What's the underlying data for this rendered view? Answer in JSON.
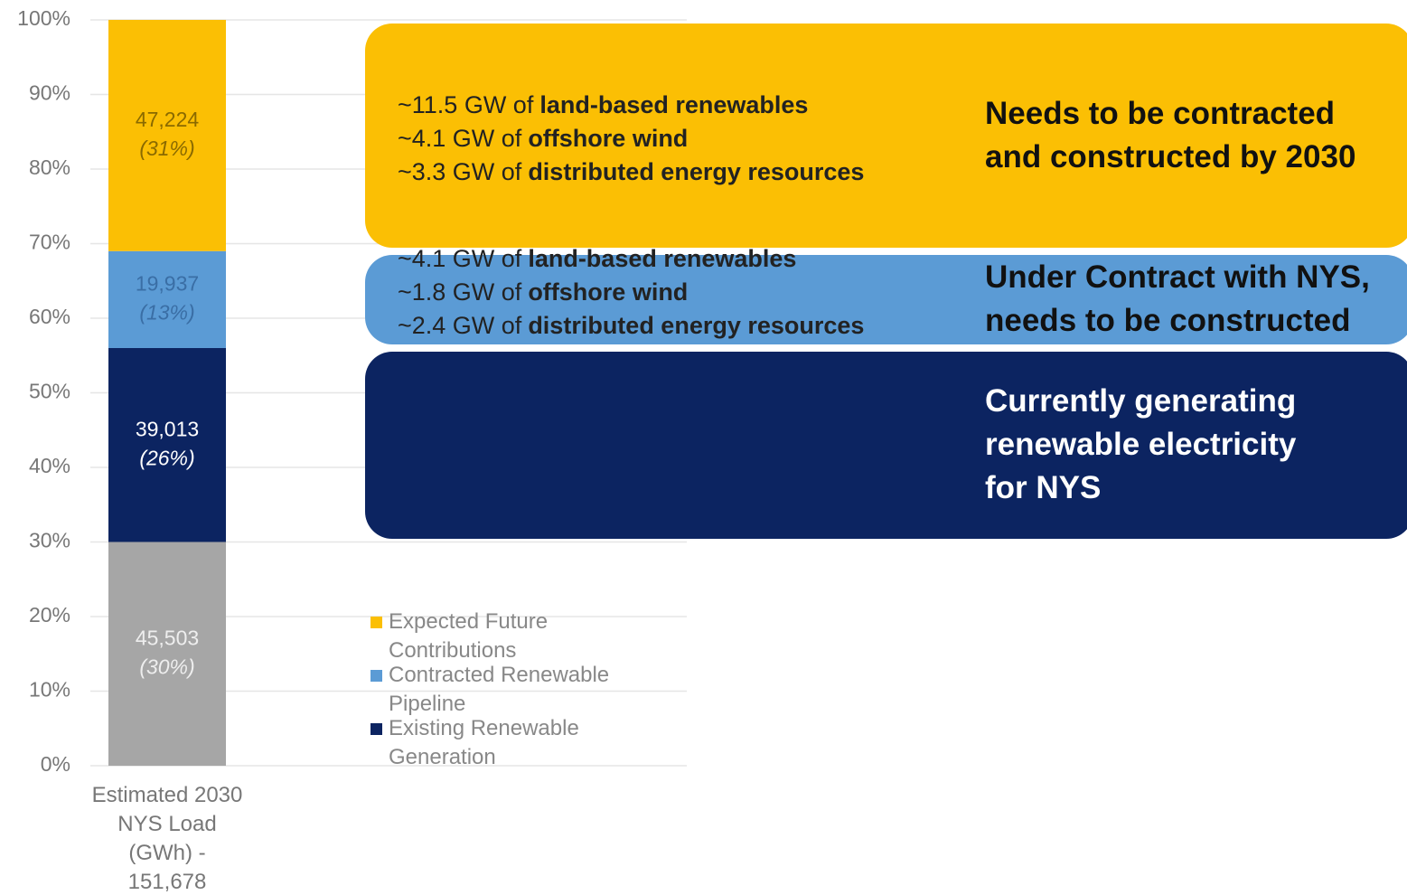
{
  "chart_data": {
    "type": "bar",
    "categories": [
      "Estimated 2030 NYS Load (GWh) - 151,678"
    ],
    "ylim": [
      0,
      100
    ],
    "yticks": [
      {
        "value": 0,
        "label": "0%"
      },
      {
        "value": 10,
        "label": "10%"
      },
      {
        "value": 20,
        "label": "20%"
      },
      {
        "value": 30,
        "label": "30%"
      },
      {
        "value": 40,
        "label": "40%"
      },
      {
        "value": 50,
        "label": "50%"
      },
      {
        "value": 60,
        "label": "60%"
      },
      {
        "value": 70,
        "label": "70%"
      },
      {
        "value": 80,
        "label": "80%"
      },
      {
        "value": 90,
        "label": "90%"
      },
      {
        "value": 100,
        "label": "100%"
      }
    ],
    "grid": true,
    "series": [
      {
        "color": "#a6a6a6",
        "values": [
          30
        ],
        "value_labels": [
          "(30%)"
        ],
        "amount_labels": [
          "45,503"
        ]
      },
      {
        "name": "Existing Renewable Generation",
        "color": "#0c2461",
        "values": [
          26
        ],
        "value_labels": [
          "(26%)"
        ],
        "amount_labels": [
          "39,013"
        ]
      },
      {
        "name": "Contracted Renewable Pipeline",
        "color": "#5b9bd5",
        "values": [
          13
        ],
        "value_labels": [
          "(13%)"
        ],
        "amount_labels": [
          "19,937"
        ]
      },
      {
        "name": "Expected Future Contributions",
        "color": "#fbbf04",
        "values": [
          31
        ],
        "value_labels": [
          "(31%)"
        ],
        "amount_labels": [
          "47,224"
        ]
      }
    ],
    "annotations": [
      {
        "series": 3,
        "heading": [
          "Needs to be contracted",
          "and constructed by 2030"
        ],
        "lines": [
          {
            "prefix": "~11.5 GW of",
            "bold": "land-based renewables"
          },
          {
            "prefix": "~4.1 GW of",
            "bold": "offshore wind"
          },
          {
            "prefix": "~3.3 GW of",
            "bold": "distributed energy resources"
          }
        ]
      },
      {
        "series": 2,
        "heading": [
          "Under Contract with NYS,",
          "needs to be constructed"
        ],
        "lines": [
          {
            "prefix": "~4.1 GW of",
            "bold": "land-based renewables"
          },
          {
            "prefix": "~1.8 GW of",
            "bold": "offshore wind"
          },
          {
            "prefix": "~2.4 GW of",
            "bold": "distributed energy resources"
          }
        ]
      },
      {
        "series": 1,
        "heading": [
          "Currently generating",
          "renewable electricity",
          "for NYS"
        ],
        "lines": []
      }
    ]
  }
}
